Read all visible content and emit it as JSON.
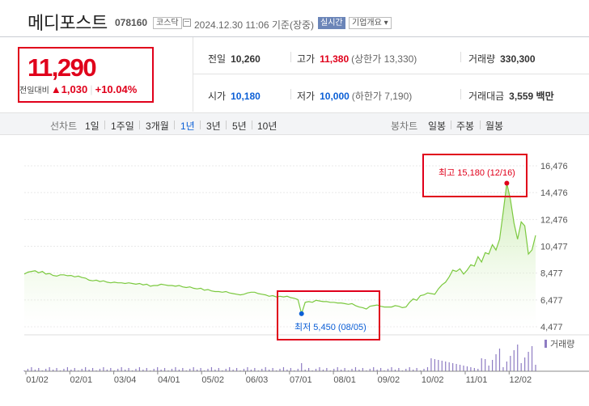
{
  "header": {
    "name": "메디포스트",
    "code": "078160",
    "market": "코스닥",
    "datetime": "2024.12.30 11:06 기준(장중)",
    "realtime_label": "실시간",
    "overview_label": "기업개요 ▾"
  },
  "price": {
    "current": "11,290",
    "change_label": "전일대비",
    "change_abs": "▲1,030",
    "change_pct": "+10.04%",
    "up_color": "#e0001b",
    "down_color": "#0b5fd6"
  },
  "info": {
    "prev_close": {
      "label": "전일",
      "value": "10,260"
    },
    "high": {
      "label": "고가",
      "value": "11,380",
      "sub": "(상한가 13,330)"
    },
    "volume": {
      "label": "거래량",
      "value": "330,300"
    },
    "open": {
      "label": "시가",
      "value": "10,180"
    },
    "low": {
      "label": "저가",
      "value": "10,000",
      "sub": "(하한가 7,190)"
    },
    "amount": {
      "label": "거래대금",
      "value": "3,559 백만"
    }
  },
  "chart_controls": {
    "line_label": "선차트",
    "periods": [
      "1일",
      "1주일",
      "3개월",
      "1년",
      "3년",
      "5년",
      "10년"
    ],
    "selected_period": "1년",
    "candle_label": "봉차트",
    "candles": [
      "일봉",
      "주봉",
      "월봉"
    ]
  },
  "chart_data": {
    "type": "area",
    "y_ticks": [
      "16,476",
      "14,476",
      "12,476",
      "10,477",
      "8,477",
      "6,477",
      "4,477"
    ],
    "x_ticks": [
      "01/02",
      "02/01",
      "03/04",
      "04/01",
      "05/02",
      "06/03",
      "07/01",
      "08/01",
      "09/02",
      "10/02",
      "11/01",
      "12/02"
    ],
    "ylim": [
      4477,
      16476
    ],
    "volume_label": "거래량",
    "high_annotation": "최고 15,180 (12/16)",
    "low_annotation": "최저 5,450 (08/05)",
    "high_value": 15180,
    "low_value": 5450,
    "line_color": "#7bc93f",
    "series": [
      {
        "values": [
          8400,
          8550,
          8600,
          8650,
          8500,
          8600,
          8400,
          8450,
          8300,
          8250,
          8350,
          8350,
          8280,
          8300,
          8200,
          8250,
          8150,
          8100,
          7950,
          7900,
          7950,
          7850,
          7900,
          7800,
          7750,
          7800,
          7750,
          7750,
          7700,
          7750,
          7700,
          7650,
          7700,
          7600,
          7650,
          7500,
          7550,
          7550,
          7650,
          7600,
          7550,
          7550,
          7500,
          7550,
          7450,
          7400,
          7450,
          7350,
          7300,
          7350,
          7200,
          7250,
          7150,
          7100,
          7100,
          7050,
          7100,
          7000,
          6950,
          6900,
          6850,
          6900,
          7000,
          7050,
          7050,
          6950,
          6900,
          6850,
          6750,
          6800,
          6700,
          6750,
          6700,
          6750,
          6650,
          6600,
          6500,
          5450,
          6300,
          6350,
          6300,
          6450,
          6400,
          6350,
          6350,
          6300,
          6300,
          6250,
          6250,
          6200,
          6150,
          6200,
          6050,
          5950,
          5900,
          5800,
          6000,
          6050,
          6100,
          6000,
          5950,
          5950,
          5950,
          6050,
          6000,
          5900,
          5950,
          6300,
          6550,
          6450,
          6800,
          6850,
          7000,
          6950,
          6900,
          7300,
          7600,
          7800,
          8200,
          8700,
          8600,
          8800,
          8400,
          8700,
          9100,
          9000,
          9700,
          9300,
          10000,
          9900,
          10600,
          10200,
          11000,
          13000,
          15180,
          14000,
          12200,
          11000,
          12300,
          12000,
          9900,
          10200,
          11290
        ]
      }
    ]
  }
}
